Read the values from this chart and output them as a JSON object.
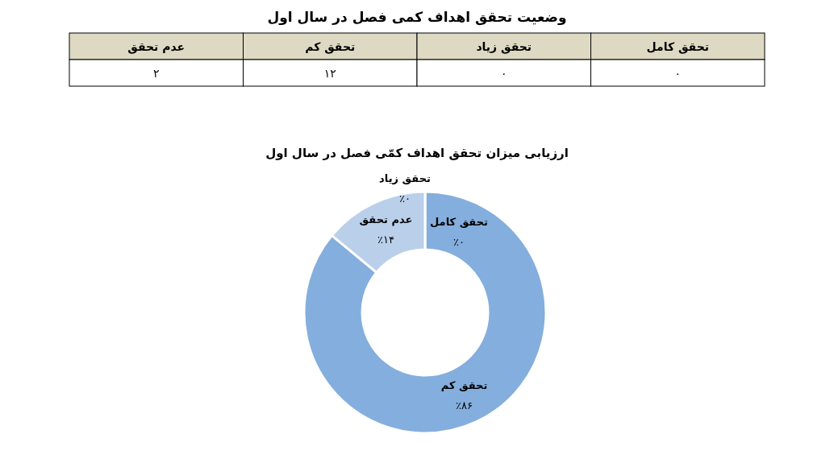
{
  "chart_data": [
    {
      "type": "other",
      "title": "وضعیت تحقق اهداف کمی فصل در سال اول",
      "categories": [
        "عدم تحقق",
        "تحقق کم",
        "تحقق زیاد",
        "تحقق کامل"
      ],
      "values": [
        2,
        12,
        0,
        0
      ],
      "value_labels": [
        "۲",
        "۱۲",
        "۰",
        "۰"
      ]
    },
    {
      "type": "donut",
      "title": "ارزیابی میزان تحقق اهداف کمّی فصل در سال اول",
      "categories": [
        "تحقق کامل",
        "تحقق کم",
        "عدم تحقق",
        "تحقق زیاد"
      ],
      "values": [
        0,
        86,
        14,
        0
      ],
      "value_labels": [
        "٪۰",
        "٪۸۶",
        "٪۱۴",
        "٪۰"
      ],
      "colors": [
        null,
        "#84aedd",
        "#b9cfea",
        null
      ]
    }
  ]
}
